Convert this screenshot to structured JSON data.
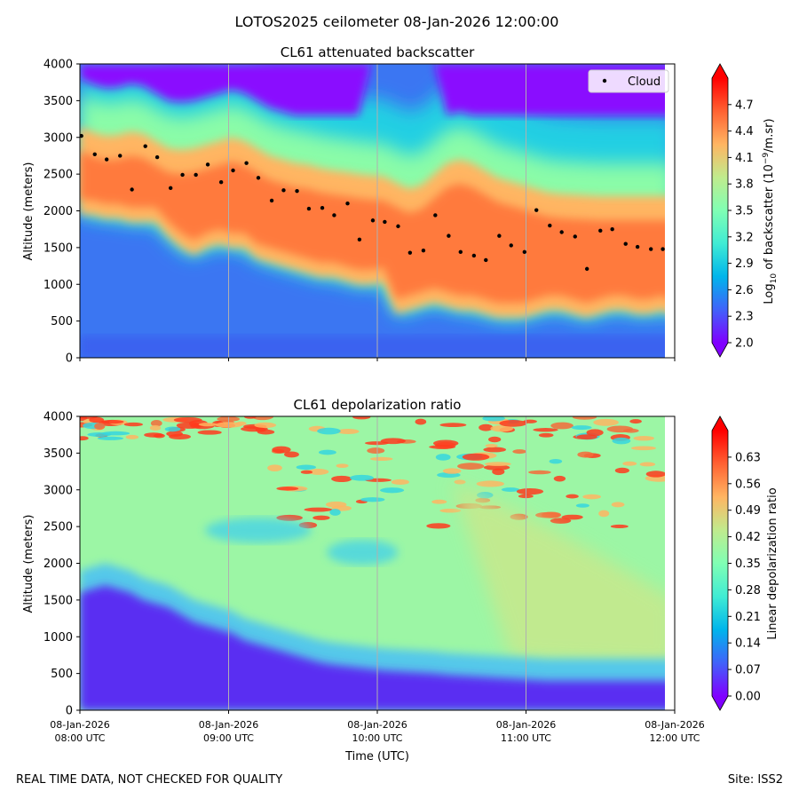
{
  "suptitle": "LOTOS2025 ceilometer 08-Jan-2026 12:00:00",
  "footer_left": "REAL TIME DATA, NOT CHECKED FOR QUALITY",
  "footer_right": "Site: ISS2",
  "chart_data": [
    {
      "type": "heatmap",
      "title": "CL61 attenuated backscatter",
      "ylabel": "Altitude (meters)",
      "xlabel": "",
      "ylim": [
        0,
        4000
      ],
      "xlim_hours": [
        8,
        12
      ],
      "yticks": [
        0,
        500,
        1000,
        1500,
        2000,
        2500,
        3000,
        3500,
        4000
      ],
      "xtick_hours": [
        8,
        9,
        10,
        11,
        12
      ],
      "colorbar": {
        "label_parts": [
          "Log",
          "10",
          " of backscatter (10",
          "−9",
          "/m.sr)"
        ],
        "range": [
          2.0,
          5.0
        ],
        "ticks": [
          "2.0",
          "2.3",
          "2.6",
          "2.9",
          "3.2",
          "3.5",
          "3.8",
          "4.1",
          "4.4",
          "4.7"
        ],
        "colormap": "rainbow"
      },
      "legend": {
        "label": "Cloud",
        "position": "upper right"
      },
      "cloud_base": {
        "times_h": [
          8.01,
          8.1,
          8.18,
          8.27,
          8.35,
          8.44,
          8.52,
          8.61,
          8.69,
          8.78,
          8.86,
          8.95,
          9.03,
          9.12,
          9.2,
          9.29,
          9.37,
          9.46,
          9.54,
          9.63,
          9.71,
          9.8,
          9.88,
          9.97,
          10.05,
          10.14,
          10.22,
          10.31,
          10.39,
          10.48,
          10.56,
          10.65,
          10.73,
          10.82,
          10.9,
          10.99,
          11.07,
          11.16,
          11.24,
          11.33,
          11.41,
          11.5,
          11.58,
          11.67,
          11.75,
          11.84,
          11.92
        ],
        "altitudes_m": [
          3020,
          2770,
          2700,
          2750,
          2290,
          2880,
          2730,
          2310,
          2490,
          2490,
          2630,
          2390,
          2550,
          2650,
          2450,
          2140,
          2280,
          2270,
          2030,
          2040,
          1940,
          2100,
          1610,
          1870,
          1850,
          1790,
          1430,
          1460,
          1940,
          1660,
          1440,
          1390,
          1330,
          1660,
          1530,
          1440,
          2010,
          1800,
          1710,
          1650,
          1210,
          1730,
          1750,
          1550,
          1510,
          1480,
          1480
        ]
      },
      "layer_top_m": [
        2900,
        2820,
        2770,
        2780,
        2830,
        2800,
        2700,
        2600,
        2580,
        2600,
        2650,
        2700,
        2750,
        2700,
        2600,
        2500,
        2450,
        2400,
        2380,
        2330,
        2300,
        2280,
        2250,
        2230,
        2220,
        2130,
        2050,
        2100,
        2250,
        2400,
        2450,
        2400,
        2300,
        2200,
        2150,
        2100,
        2050,
        2000,
        1980,
        1970,
        1960,
        1950,
        1950,
        1950,
        1950,
        1950,
        1950,
        1950
      ],
      "layer_base_m": [
        1900,
        1900,
        1850,
        1850,
        1800,
        1800,
        1800,
        1600,
        1450,
        1350,
        1450,
        1500,
        1450,
        1450,
        1300,
        1250,
        1200,
        1150,
        1100,
        1050,
        1050,
        1000,
        950,
        950,
        980,
        550,
        600,
        650,
        700,
        650,
        600,
        600,
        550,
        500,
        500,
        500,
        550,
        600,
        600,
        550,
        500,
        550,
        600,
        600,
        550,
        550,
        600,
        500
      ]
    },
    {
      "type": "heatmap",
      "title": "CL61 depolarization ratio",
      "ylabel": "Altitude (meters)",
      "xlabel": "Time (UTC)",
      "ylim": [
        0,
        4000
      ],
      "xlim_hours": [
        8,
        12
      ],
      "yticks": [
        0,
        500,
        1000,
        1500,
        2000,
        2500,
        3000,
        3500,
        4000
      ],
      "xtick_labels": [
        [
          "08-Jan-2026",
          "08:00 UTC"
        ],
        [
          "08-Jan-2026",
          "09:00 UTC"
        ],
        [
          "08-Jan-2026",
          "10:00 UTC"
        ],
        [
          "08-Jan-2026",
          "11:00 UTC"
        ],
        [
          "08-Jan-2026",
          "12:00 UTC"
        ]
      ],
      "colorbar": {
        "label": "Linear depolarization ratio",
        "range": [
          0.0,
          0.7
        ],
        "ticks": [
          "0.00",
          "0.07",
          "0.14",
          "0.21",
          "0.28",
          "0.35",
          "0.42",
          "0.49",
          "0.56",
          "0.63"
        ],
        "colormap": "rainbow"
      },
      "boundary_layer_top_m": [
        1600,
        1650,
        1700,
        1650,
        1600,
        1500,
        1450,
        1400,
        1300,
        1200,
        1150,
        1100,
        1050,
        950,
        900,
        850,
        800,
        750,
        700,
        650,
        620,
        600,
        580,
        560,
        540,
        530,
        520,
        510,
        500,
        480,
        470,
        460,
        450,
        440,
        430,
        420,
        410,
        400,
        400,
        400,
        400,
        400,
        400,
        400,
        400,
        400,
        400,
        400
      ]
    }
  ]
}
